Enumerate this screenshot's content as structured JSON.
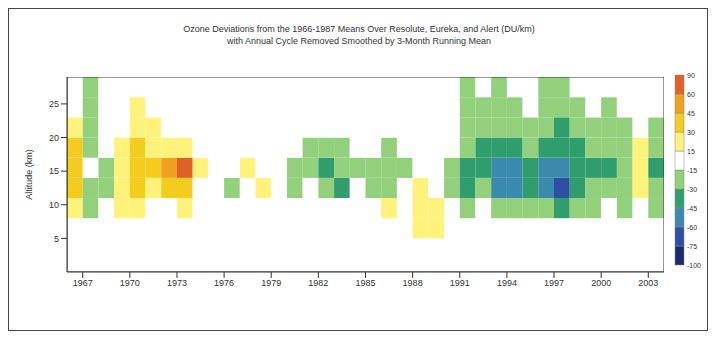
{
  "chart_data": {
    "type": "heatmap",
    "title": "Ozone Deviations from the 1966-1987 Means Over Resolute, Eureka, and Alert (DU/km)",
    "subtitle": "with Annual Cycle Removed Smoothed by 3-Month Running Mean",
    "y_label": "Altitude (km)",
    "x_edges": [
      1966,
      1967,
      1968,
      1969,
      1970,
      1971,
      1972,
      1973,
      1974,
      1975,
      1976,
      1977,
      1978,
      1979,
      1980,
      1981,
      1982,
      1983,
      1984,
      1985,
      1986,
      1987,
      1988,
      1989,
      1990,
      1991,
      1992,
      1993,
      1994,
      1995,
      1996,
      1997,
      1998,
      1999,
      2000,
      2001,
      2002,
      2003,
      2004
    ],
    "y_edges": [
      2,
      5,
      8,
      11,
      14,
      17,
      20,
      23,
      26,
      29
    ],
    "values": [
      [
        0,
        0,
        0,
        0,
        0,
        0,
        0,
        0,
        0,
        0,
        0,
        0,
        0,
        0,
        0,
        0,
        0,
        0,
        0,
        0,
        0,
        0,
        0,
        0,
        0,
        0,
        0,
        0,
        0,
        0,
        0,
        0,
        0,
        0,
        0,
        0,
        0,
        0
      ],
      [
        0,
        0,
        0,
        0,
        0,
        0,
        0,
        0,
        0,
        0,
        0,
        0,
        0,
        0,
        0,
        0,
        0,
        0,
        0,
        0,
        0,
        0,
        20,
        20,
        0,
        0,
        0,
        0,
        0,
        0,
        0,
        0,
        0,
        0,
        0,
        0,
        0,
        0
      ],
      [
        20,
        -20,
        0,
        25,
        20,
        0,
        0,
        20,
        0,
        0,
        0,
        0,
        0,
        0,
        0,
        0,
        0,
        0,
        0,
        0,
        20,
        0,
        25,
        20,
        0,
        -20,
        0,
        -25,
        -30,
        -20,
        -30,
        -35,
        -25,
        -20,
        0,
        -20,
        0,
        -20
      ],
      [
        35,
        -25,
        -20,
        20,
        30,
        20,
        35,
        40,
        0,
        0,
        -20,
        0,
        20,
        0,
        -20,
        0,
        -30,
        -40,
        0,
        -20,
        -25,
        0,
        20,
        0,
        -30,
        -35,
        -30,
        -50,
        -60,
        -35,
        -50,
        -65,
        -40,
        -30,
        -20,
        -30,
        20,
        -30
      ],
      [
        40,
        0,
        -20,
        25,
        35,
        30,
        45,
        60,
        20,
        0,
        0,
        20,
        0,
        0,
        -20,
        -30,
        -45,
        -30,
        -25,
        -20,
        -30,
        -20,
        0,
        0,
        -20,
        -40,
        -45,
        -55,
        -50,
        -40,
        -55,
        -60,
        -45,
        -35,
        -40,
        -30,
        25,
        -35
      ],
      [
        30,
        -20,
        0,
        20,
        30,
        20,
        20,
        25,
        0,
        0,
        0,
        0,
        0,
        0,
        0,
        -20,
        -25,
        -20,
        0,
        0,
        -20,
        0,
        0,
        0,
        0,
        -30,
        -35,
        -40,
        -35,
        -30,
        -40,
        -45,
        -35,
        -30,
        -30,
        -25,
        20,
        -25
      ],
      [
        20,
        -30,
        0,
        0,
        25,
        20,
        0,
        0,
        0,
        0,
        0,
        0,
        0,
        0,
        0,
        0,
        0,
        0,
        0,
        0,
        0,
        0,
        0,
        0,
        0,
        -25,
        -30,
        -30,
        -25,
        -20,
        -30,
        -35,
        -30,
        -20,
        -25,
        -20,
        0,
        -20
      ],
      [
        0,
        -30,
        0,
        0,
        20,
        0,
        0,
        0,
        0,
        0,
        0,
        0,
        0,
        0,
        0,
        0,
        0,
        0,
        0,
        0,
        0,
        0,
        0,
        0,
        0,
        -20,
        -25,
        -25,
        -20,
        0,
        -20,
        -25,
        -20,
        0,
        -20,
        0,
        0,
        0
      ],
      [
        0,
        -20,
        0,
        0,
        0,
        0,
        0,
        0,
        0,
        0,
        0,
        0,
        0,
        0,
        0,
        0,
        0,
        0,
        0,
        0,
        0,
        0,
        0,
        0,
        0,
        -20,
        0,
        -20,
        0,
        0,
        -20,
        -20,
        0,
        0,
        0,
        0,
        0,
        0
      ]
    ],
    "xlim": [
      1966,
      2004
    ],
    "xticks": [
      1967,
      1970,
      1973,
      1976,
      1979,
      1982,
      1985,
      1988,
      1991,
      1994,
      1997,
      2000,
      2003
    ],
    "ylim": [
      0,
      29
    ],
    "yticks": [
      5,
      10,
      15,
      20,
      25
    ],
    "grid": false,
    "colorbar": {
      "range": [
        -100,
        90
      ],
      "ticks": [
        -100,
        -75,
        -60,
        -45,
        -30,
        -15,
        15,
        30,
        45,
        60,
        90
      ],
      "colors": [
        "#1c2a6e",
        "#2f4fa2",
        "#3a8aae",
        "#2f9e6c",
        "#93d07c",
        "#ffffff",
        "#fff27a",
        "#f4cc1e",
        "#f0a020",
        "#e0602a"
      ]
    }
  }
}
